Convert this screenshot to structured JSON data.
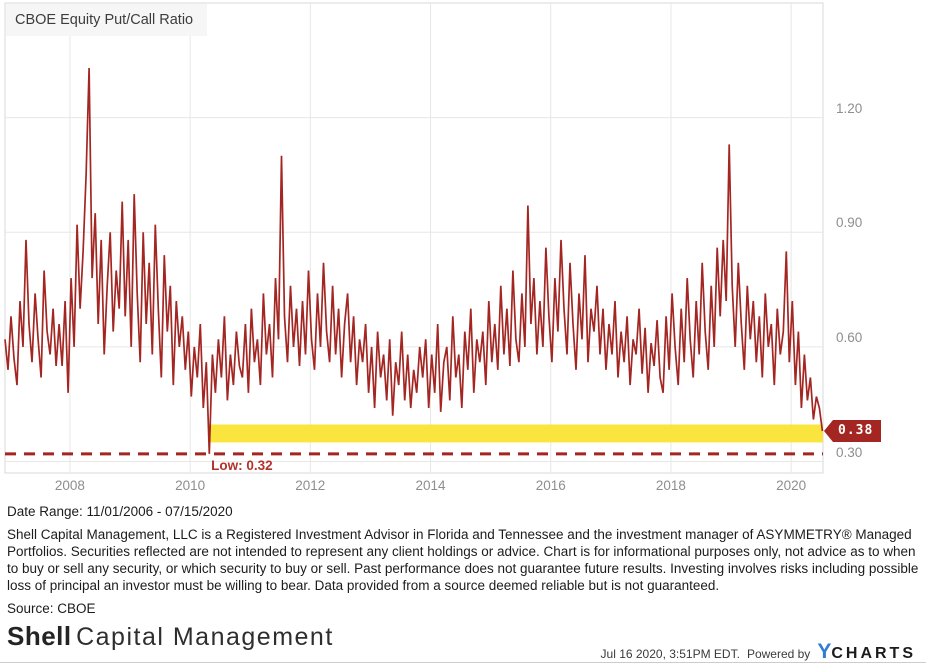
{
  "chart": {
    "title": "CBOE Equity Put/Call Ratio",
    "last_value_label": "0.38",
    "low_label": "Low: 0.32"
  },
  "footer": {
    "date_range": "Date Range: 11/01/2006 - 07/15/2020",
    "disclaimer": "Shell Capital Management, LLC is a Registered Investment Advisor in Florida and Tennessee and the investment manager of ASYMMETRY® Managed Portfolios. Securities reflected are not intended to represent any client holdings or advice. Chart is for informational purposes only, not advice as to when to buy or sell any security, or which security to buy or sell. Past performance does not guarantee future results. Investing involves risks including possible loss of principal an investor must be willing to bear. Data provided from a source deemed reliable but is not guaranteed.",
    "source": "Source: CBOE",
    "logo_bold": "Shell",
    "logo_rest": "Capital Management",
    "timestamp": "Jul 16 2020, 3:51PM EDT.",
    "powered_by": "Powered by",
    "ycharts_y": "Y",
    "ycharts_rest": "CHARTS"
  },
  "chart_data": {
    "type": "line",
    "title": "CBOE Equity Put/Call Ratio",
    "xlabel": "",
    "ylabel": "",
    "x_range": [
      2006.92,
      2020.53
    ],
    "y_range": [
      0.27,
      1.5
    ],
    "x_ticks": [
      {
        "value": 2008,
        "label": "2008"
      },
      {
        "value": 2010,
        "label": "2010"
      },
      {
        "value": 2012,
        "label": "2012"
      },
      {
        "value": 2014,
        "label": "2014"
      },
      {
        "value": 2016,
        "label": "2016"
      },
      {
        "value": 2018,
        "label": "2018"
      },
      {
        "value": 2020,
        "label": "2020"
      }
    ],
    "y_ticks": [
      {
        "value": 0.3,
        "label": "0.30"
      },
      {
        "value": 0.6,
        "label": "0.60"
      },
      {
        "value": 0.9,
        "label": "0.90"
      },
      {
        "value": 1.2,
        "label": "1.20"
      }
    ],
    "grid": true,
    "legend": "none",
    "colors": {
      "line": "#a32622",
      "grid": "#e7e7e7",
      "border": "#d9d9d9",
      "band": "#f9e53d",
      "badge": "#a32622",
      "low_text": "#b3322b",
      "tick_text": "#8e8e8e"
    },
    "band": {
      "x_start": 2010.3,
      "x_end": 2020.53,
      "v_top": 0.397,
      "v_bottom": 0.35
    },
    "low": {
      "value": 0.32,
      "x": 2010.3,
      "label": "Low: 0.32",
      "dash": [
        11,
        8
      ]
    },
    "last_value": 0.38,
    "series": [
      {
        "name": "CBOE Equity Put/Call Ratio",
        "x_start": 2006.92,
        "x_step": 0.05,
        "values": [
          0.62,
          0.54,
          0.68,
          0.57,
          0.5,
          0.72,
          0.6,
          0.88,
          0.66,
          0.56,
          0.74,
          0.62,
          0.52,
          0.8,
          0.64,
          0.58,
          0.7,
          0.55,
          0.66,
          0.55,
          0.72,
          0.48,
          0.78,
          0.6,
          0.92,
          0.7,
          0.85,
          1.05,
          1.33,
          0.78,
          0.95,
          0.66,
          0.88,
          0.58,
          0.76,
          0.9,
          0.64,
          0.8,
          0.7,
          0.98,
          0.68,
          0.88,
          0.6,
          1.0,
          0.74,
          0.56,
          0.9,
          0.66,
          0.82,
          0.58,
          0.92,
          0.7,
          0.52,
          0.84,
          0.64,
          0.76,
          0.5,
          0.72,
          0.6,
          0.68,
          0.54,
          0.64,
          0.47,
          0.6,
          0.52,
          0.66,
          0.44,
          0.56,
          0.32,
          0.58,
          0.48,
          0.62,
          0.52,
          0.68,
          0.46,
          0.58,
          0.5,
          0.64,
          0.55,
          0.52,
          0.66,
          0.48,
          0.7,
          0.56,
          0.62,
          0.5,
          0.74,
          0.58,
          0.66,
          0.52,
          0.78,
          0.62,
          1.1,
          0.68,
          0.56,
          0.76,
          0.6,
          0.7,
          0.55,
          0.72,
          0.58,
          0.8,
          0.62,
          0.54,
          0.74,
          0.6,
          0.82,
          0.64,
          0.56,
          0.76,
          0.58,
          0.7,
          0.52,
          0.66,
          0.74,
          0.56,
          0.68,
          0.5,
          0.62,
          0.56,
          0.66,
          0.48,
          0.6,
          0.44,
          0.64,
          0.52,
          0.58,
          0.46,
          0.62,
          0.42,
          0.56,
          0.5,
          0.64,
          0.46,
          0.58,
          0.44,
          0.54,
          0.48,
          0.6,
          0.52,
          0.62,
          0.44,
          0.58,
          0.48,
          0.66,
          0.43,
          0.56,
          0.6,
          0.46,
          0.68,
          0.52,
          0.58,
          0.44,
          0.64,
          0.54,
          0.7,
          0.48,
          0.62,
          0.56,
          0.64,
          0.5,
          0.72,
          0.56,
          0.66,
          0.54,
          0.76,
          0.58,
          0.7,
          0.55,
          0.8,
          0.62,
          0.56,
          0.74,
          0.6,
          0.97,
          0.66,
          0.78,
          0.58,
          0.72,
          0.6,
          0.86,
          0.68,
          0.56,
          0.78,
          0.64,
          0.88,
          0.7,
          0.58,
          0.82,
          0.66,
          0.54,
          0.74,
          0.62,
          0.84,
          0.56,
          0.7,
          0.64,
          0.76,
          0.58,
          0.7,
          0.54,
          0.66,
          0.58,
          0.72,
          0.52,
          0.64,
          0.56,
          0.68,
          0.5,
          0.62,
          0.58,
          0.7,
          0.53,
          0.65,
          0.48,
          0.61,
          0.55,
          0.67,
          0.52,
          0.48,
          0.68,
          0.54,
          0.74,
          0.6,
          0.5,
          0.7,
          0.56,
          0.78,
          0.62,
          0.52,
          0.72,
          0.58,
          0.82,
          0.64,
          0.54,
          0.76,
          0.6,
          0.86,
          0.68,
          0.88,
          0.72,
          1.13,
          0.76,
          0.6,
          0.82,
          0.66,
          0.54,
          0.76,
          0.62,
          0.72,
          0.56,
          0.68,
          0.52,
          0.74,
          0.6,
          0.66,
          0.5,
          0.7,
          0.58,
          0.64,
          0.85,
          0.56,
          0.72,
          0.5,
          0.64,
          0.44,
          0.58,
          0.46,
          0.52,
          0.41,
          0.47,
          0.44,
          0.38
        ]
      }
    ]
  }
}
